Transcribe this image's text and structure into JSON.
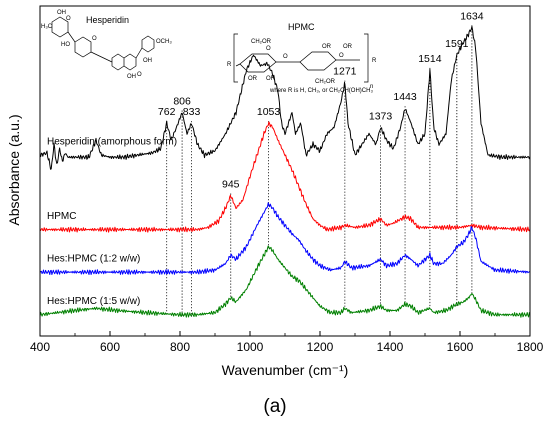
{
  "chart_data": {
    "type": "line",
    "xlabel": "Wavenumber (cm⁻¹)",
    "ylabel": "Absorbance (a.u.)",
    "xlim": [
      400,
      1800
    ],
    "x_ticks": [
      400,
      600,
      800,
      1000,
      1200,
      1400,
      1600,
      1800
    ],
    "x_tick_labels": [
      "400",
      "600",
      "800",
      "1000",
      "1200",
      "1400",
      "1600",
      "1800"
    ],
    "grid": false,
    "panel_label": "(a)",
    "series": [
      {
        "name": "Hesperidin (amorphous form)",
        "color": "#000000",
        "baseline": 0.84,
        "points": [
          [
            400,
            0.85
          ],
          [
            420,
            0.86
          ],
          [
            432,
            0.78
          ],
          [
            440,
            0.9
          ],
          [
            448,
            0.8
          ],
          [
            456,
            0.88
          ],
          [
            464,
            0.82
          ],
          [
            472,
            0.86
          ],
          [
            480,
            0.84
          ],
          [
            500,
            0.84
          ],
          [
            540,
            0.84
          ],
          [
            560,
            0.92
          ],
          [
            575,
            0.85
          ],
          [
            600,
            0.84
          ],
          [
            640,
            0.84
          ],
          [
            680,
            0.85
          ],
          [
            720,
            0.86
          ],
          [
            745,
            0.88
          ],
          [
            762,
            1.0
          ],
          [
            775,
            0.92
          ],
          [
            790,
            0.98
          ],
          [
            806,
            1.05
          ],
          [
            820,
            0.95
          ],
          [
            833,
            1.0
          ],
          [
            850,
            0.9
          ],
          [
            870,
            0.85
          ],
          [
            900,
            0.87
          ],
          [
            930,
            0.95
          ],
          [
            960,
            1.05
          ],
          [
            990,
            1.25
          ],
          [
            1010,
            1.32
          ],
          [
            1030,
            1.27
          ],
          [
            1050,
            1.28
          ],
          [
            1065,
            1.23
          ],
          [
            1080,
            1.15
          ],
          [
            1090,
            1.0
          ],
          [
            1100,
            0.95
          ],
          [
            1120,
            1.05
          ],
          [
            1130,
            0.95
          ],
          [
            1145,
            1.0
          ],
          [
            1160,
            0.85
          ],
          [
            1180,
            0.9
          ],
          [
            1200,
            0.87
          ],
          [
            1220,
            0.95
          ],
          [
            1240,
            0.98
          ],
          [
            1260,
            1.1
          ],
          [
            1271,
            1.19
          ],
          [
            1280,
            1.0
          ],
          [
            1300,
            0.85
          ],
          [
            1320,
            0.9
          ],
          [
            1340,
            0.95
          ],
          [
            1360,
            0.9
          ],
          [
            1373,
            0.98
          ],
          [
            1390,
            0.92
          ],
          [
            1410,
            0.88
          ],
          [
            1430,
            0.98
          ],
          [
            1443,
            1.07
          ],
          [
            1460,
            1.0
          ],
          [
            1480,
            0.9
          ],
          [
            1500,
            0.95
          ],
          [
            1514,
            1.25
          ],
          [
            1525,
            0.98
          ],
          [
            1540,
            0.9
          ],
          [
            1560,
            0.95
          ],
          [
            1575,
            1.2
          ],
          [
            1591,
            1.32
          ],
          [
            1610,
            1.38
          ],
          [
            1625,
            1.42
          ],
          [
            1634,
            1.45
          ],
          [
            1645,
            1.35
          ],
          [
            1660,
            1.0
          ],
          [
            1680,
            0.85
          ],
          [
            1720,
            0.84
          ],
          [
            1760,
            0.84
          ],
          [
            1800,
            0.84
          ]
        ]
      },
      {
        "name": "HPMC",
        "color": "#ff0000",
        "baseline": 0.5,
        "points": [
          [
            400,
            0.5
          ],
          [
            600,
            0.5
          ],
          [
            800,
            0.5
          ],
          [
            850,
            0.5
          ],
          [
            880,
            0.51
          ],
          [
            910,
            0.54
          ],
          [
            930,
            0.6
          ],
          [
            945,
            0.66
          ],
          [
            960,
            0.6
          ],
          [
            980,
            0.64
          ],
          [
            1000,
            0.75
          ],
          [
            1020,
            0.85
          ],
          [
            1040,
            0.95
          ],
          [
            1053,
            1.0
          ],
          [
            1065,
            0.98
          ],
          [
            1080,
            0.92
          ],
          [
            1100,
            0.85
          ],
          [
            1120,
            0.78
          ],
          [
            1140,
            0.7
          ],
          [
            1160,
            0.62
          ],
          [
            1180,
            0.55
          ],
          [
            1200,
            0.52
          ],
          [
            1220,
            0.5
          ],
          [
            1260,
            0.51
          ],
          [
            1271,
            0.52
          ],
          [
            1300,
            0.51
          ],
          [
            1340,
            0.52
          ],
          [
            1373,
            0.55
          ],
          [
            1390,
            0.52
          ],
          [
            1410,
            0.53
          ],
          [
            1443,
            0.56
          ],
          [
            1460,
            0.55
          ],
          [
            1480,
            0.51
          ],
          [
            1520,
            0.51
          ],
          [
            1560,
            0.51
          ],
          [
            1600,
            0.51
          ],
          [
            1634,
            0.52
          ],
          [
            1660,
            0.51
          ],
          [
            1800,
            0.5
          ]
        ]
      },
      {
        "name": "Hes:HPMC (1:2 w/w)",
        "color": "#0000ff",
        "baseline": 0.3,
        "points": [
          [
            400,
            0.3
          ],
          [
            600,
            0.3
          ],
          [
            800,
            0.3
          ],
          [
            850,
            0.3
          ],
          [
            900,
            0.31
          ],
          [
            930,
            0.34
          ],
          [
            945,
            0.38
          ],
          [
            960,
            0.36
          ],
          [
            990,
            0.42
          ],
          [
            1020,
            0.52
          ],
          [
            1040,
            0.58
          ],
          [
            1053,
            0.62
          ],
          [
            1065,
            0.6
          ],
          [
            1080,
            0.56
          ],
          [
            1100,
            0.52
          ],
          [
            1120,
            0.48
          ],
          [
            1140,
            0.45
          ],
          [
            1160,
            0.4
          ],
          [
            1180,
            0.36
          ],
          [
            1200,
            0.33
          ],
          [
            1230,
            0.31
          ],
          [
            1260,
            0.32
          ],
          [
            1271,
            0.35
          ],
          [
            1290,
            0.32
          ],
          [
            1340,
            0.33
          ],
          [
            1373,
            0.36
          ],
          [
            1390,
            0.33
          ],
          [
            1420,
            0.34
          ],
          [
            1443,
            0.38
          ],
          [
            1460,
            0.36
          ],
          [
            1480,
            0.33
          ],
          [
            1514,
            0.38
          ],
          [
            1525,
            0.34
          ],
          [
            1550,
            0.34
          ],
          [
            1575,
            0.38
          ],
          [
            1591,
            0.42
          ],
          [
            1610,
            0.44
          ],
          [
            1625,
            0.48
          ],
          [
            1634,
            0.51
          ],
          [
            1645,
            0.46
          ],
          [
            1660,
            0.35
          ],
          [
            1700,
            0.31
          ],
          [
            1800,
            0.3
          ]
        ]
      },
      {
        "name": "Hes:HPMC (1:5 w/w)",
        "color": "#008000",
        "baseline": 0.1,
        "points": [
          [
            400,
            0.1
          ],
          [
            450,
            0.11
          ],
          [
            500,
            0.12
          ],
          [
            560,
            0.13
          ],
          [
            620,
            0.12
          ],
          [
            700,
            0.11
          ],
          [
            800,
            0.1
          ],
          [
            850,
            0.1
          ],
          [
            900,
            0.11
          ],
          [
            930,
            0.15
          ],
          [
            945,
            0.18
          ],
          [
            960,
            0.16
          ],
          [
            990,
            0.22
          ],
          [
            1020,
            0.32
          ],
          [
            1040,
            0.38
          ],
          [
            1053,
            0.42
          ],
          [
            1065,
            0.4
          ],
          [
            1080,
            0.36
          ],
          [
            1100,
            0.32
          ],
          [
            1120,
            0.28
          ],
          [
            1140,
            0.26
          ],
          [
            1160,
            0.22
          ],
          [
            1180,
            0.18
          ],
          [
            1200,
            0.14
          ],
          [
            1230,
            0.11
          ],
          [
            1260,
            0.11
          ],
          [
            1271,
            0.13
          ],
          [
            1290,
            0.11
          ],
          [
            1340,
            0.12
          ],
          [
            1373,
            0.14
          ],
          [
            1390,
            0.12
          ],
          [
            1420,
            0.12
          ],
          [
            1443,
            0.15
          ],
          [
            1460,
            0.14
          ],
          [
            1480,
            0.11
          ],
          [
            1514,
            0.13
          ],
          [
            1525,
            0.11
          ],
          [
            1560,
            0.12
          ],
          [
            1591,
            0.15
          ],
          [
            1610,
            0.16
          ],
          [
            1625,
            0.18
          ],
          [
            1634,
            0.2
          ],
          [
            1645,
            0.17
          ],
          [
            1660,
            0.12
          ],
          [
            1700,
            0.1
          ],
          [
            1800,
            0.1
          ]
        ]
      }
    ],
    "peak_annotations": [
      {
        "x": 762,
        "label": "762"
      },
      {
        "x": 806,
        "label": "806"
      },
      {
        "x": 833,
        "label": "833"
      },
      {
        "x": 945,
        "label": "945"
      },
      {
        "x": 1053,
        "label": "1053"
      },
      {
        "x": 1271,
        "label": "1271"
      },
      {
        "x": 1373,
        "label": "1373"
      },
      {
        "x": 1443,
        "label": "1443"
      },
      {
        "x": 1514,
        "label": "1514"
      },
      {
        "x": 1591,
        "label": "1591"
      },
      {
        "x": 1634,
        "label": "1634"
      }
    ],
    "insets": {
      "hesperidin_title": "Hesperidin",
      "hpmc_title": "HPMC",
      "hpmc_note": "where R is H, CH₃, or CH₂CH(OH)CH₃",
      "hpmc_repeat": "n",
      "hpmc_end_left": "R",
      "hpmc_end_right": "R",
      "hpmc_ch2or_top": "CH₂OR",
      "hpmc_ch2or_bottom": "CH₂OR",
      "hpmc_or": "OR",
      "hpmc_o": "O",
      "hes_oh": "OH",
      "hes_ho": "HO",
      "hes_och3": "OCH₃",
      "hes_o": "O",
      "hes_h3c": "H₃C"
    }
  }
}
